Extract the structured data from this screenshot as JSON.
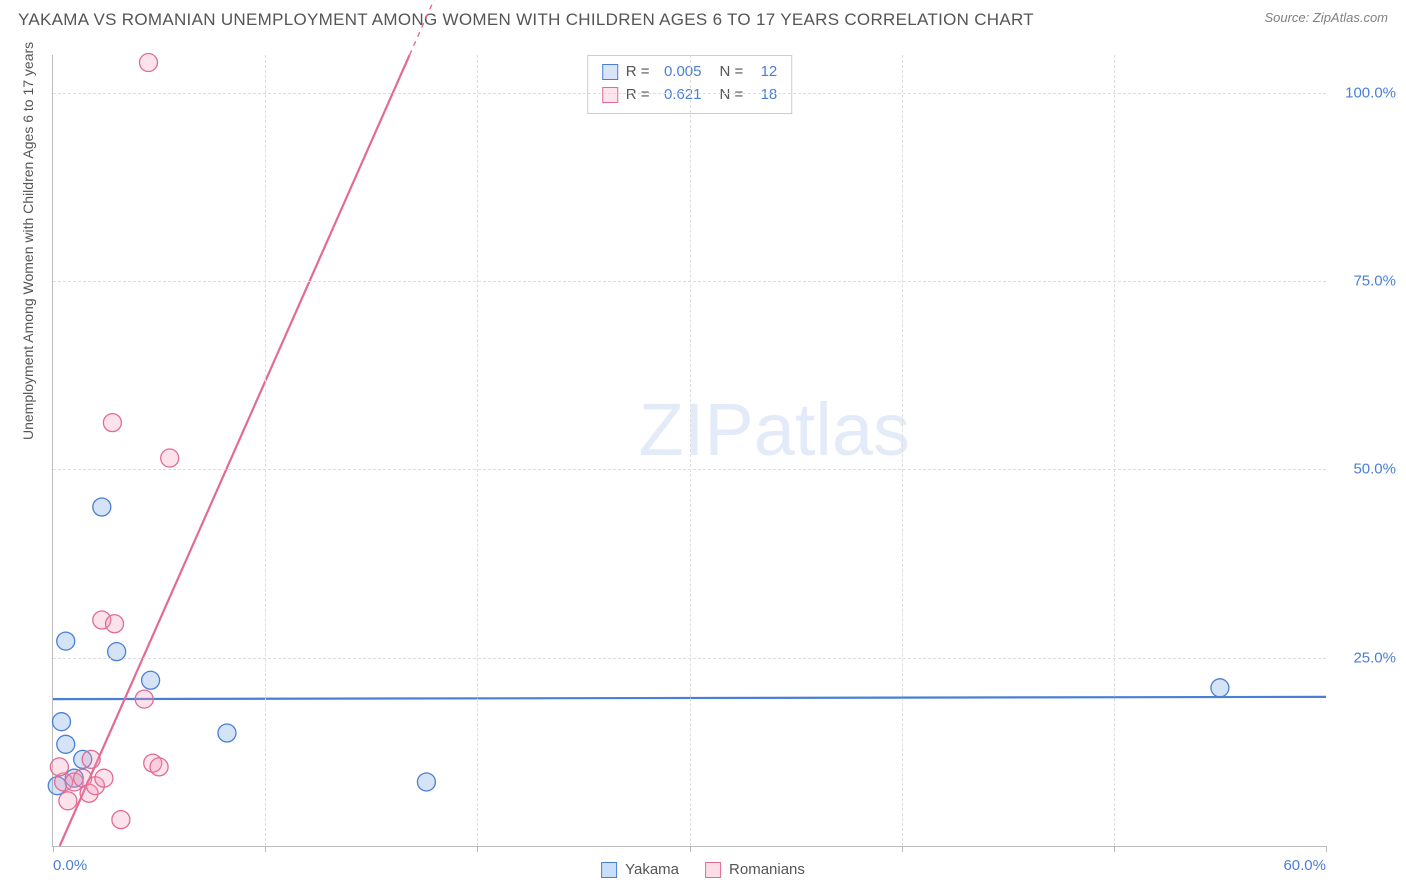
{
  "header": {
    "title": "YAKAMA VS ROMANIAN UNEMPLOYMENT AMONG WOMEN WITH CHILDREN AGES 6 TO 17 YEARS CORRELATION CHART",
    "source": "Source: ZipAtlas.com"
  },
  "chart": {
    "type": "scatter",
    "y_axis_title": "Unemployment Among Women with Children Ages 6 to 17 years",
    "xlim": [
      0,
      60
    ],
    "ylim": [
      0,
      105
    ],
    "x_ticks": [
      0,
      10,
      20,
      30,
      40,
      50,
      60
    ],
    "x_tick_labels": [
      "0.0%",
      "",
      "",
      "",
      "",
      "",
      "60.0%"
    ],
    "y_ticks": [
      25,
      50,
      75,
      100
    ],
    "y_tick_labels": [
      "25.0%",
      "50.0%",
      "75.0%",
      "100.0%"
    ],
    "grid_color": "#dddddd",
    "axis_color": "#bbbbbb",
    "tick_label_color": "#4a7fd6",
    "axis_title_color": "#555555",
    "background_color": "#ffffff",
    "marker_radius": 9,
    "marker_stroke_width": 1.3,
    "marker_fill_opacity": 0.28,
    "line_width_solid": 2.2,
    "line_width_dashed": 1.4,
    "dash_pattern": "5,5",
    "watermark": {
      "text_bold": "ZIP",
      "text_thin": "atlas",
      "color": "#4a7fd6",
      "opacity": 0.15,
      "fontsize": 74
    },
    "series": [
      {
        "name": "Yakama",
        "color": "#6699dd",
        "stroke": "#4a7fd6",
        "r_value": "0.005",
        "n_value": "12",
        "trend": {
          "y_at_x0": 19.5,
          "y_at_x60": 19.8
        },
        "points": [
          [
            0.6,
            27.2
          ],
          [
            0.4,
            16.5
          ],
          [
            0.6,
            13.5
          ],
          [
            2.3,
            45.0
          ],
          [
            3.0,
            25.8
          ],
          [
            4.6,
            22.0
          ],
          [
            8.2,
            15.0
          ],
          [
            17.6,
            8.5
          ],
          [
            55.0,
            21.0
          ],
          [
            1.0,
            9.0
          ],
          [
            1.4,
            11.5
          ],
          [
            0.2,
            8.0
          ]
        ]
      },
      {
        "name": "Romanians",
        "color": "#f497b6",
        "stroke": "#e26b94",
        "r_value": "0.621",
        "n_value": "18",
        "trend": {
          "y_at_x0": -2.0,
          "y_at_x60": 380.0
        },
        "points": [
          [
            4.5,
            104.0
          ],
          [
            2.8,
            56.2
          ],
          [
            5.5,
            51.5
          ],
          [
            2.3,
            30.0
          ],
          [
            2.9,
            29.5
          ],
          [
            4.3,
            19.5
          ],
          [
            4.7,
            11.0
          ],
          [
            5.0,
            10.5
          ],
          [
            3.2,
            3.5
          ],
          [
            0.5,
            8.5
          ],
          [
            0.7,
            6.0
          ],
          [
            1.0,
            8.5
          ],
          [
            1.4,
            9.0
          ],
          [
            1.7,
            7.0
          ],
          [
            1.8,
            11.5
          ],
          [
            2.0,
            8.0
          ],
          [
            2.4,
            9.0
          ],
          [
            0.3,
            10.5
          ]
        ]
      }
    ]
  },
  "bottom_legend": [
    {
      "label": "Yakama",
      "fill": "#c9defa",
      "stroke": "#4a7fd6"
    },
    {
      "label": "Romanians",
      "fill": "#fbdde7",
      "stroke": "#e26b94"
    }
  ],
  "stats_legend": {
    "border_color": "#cccccc"
  }
}
